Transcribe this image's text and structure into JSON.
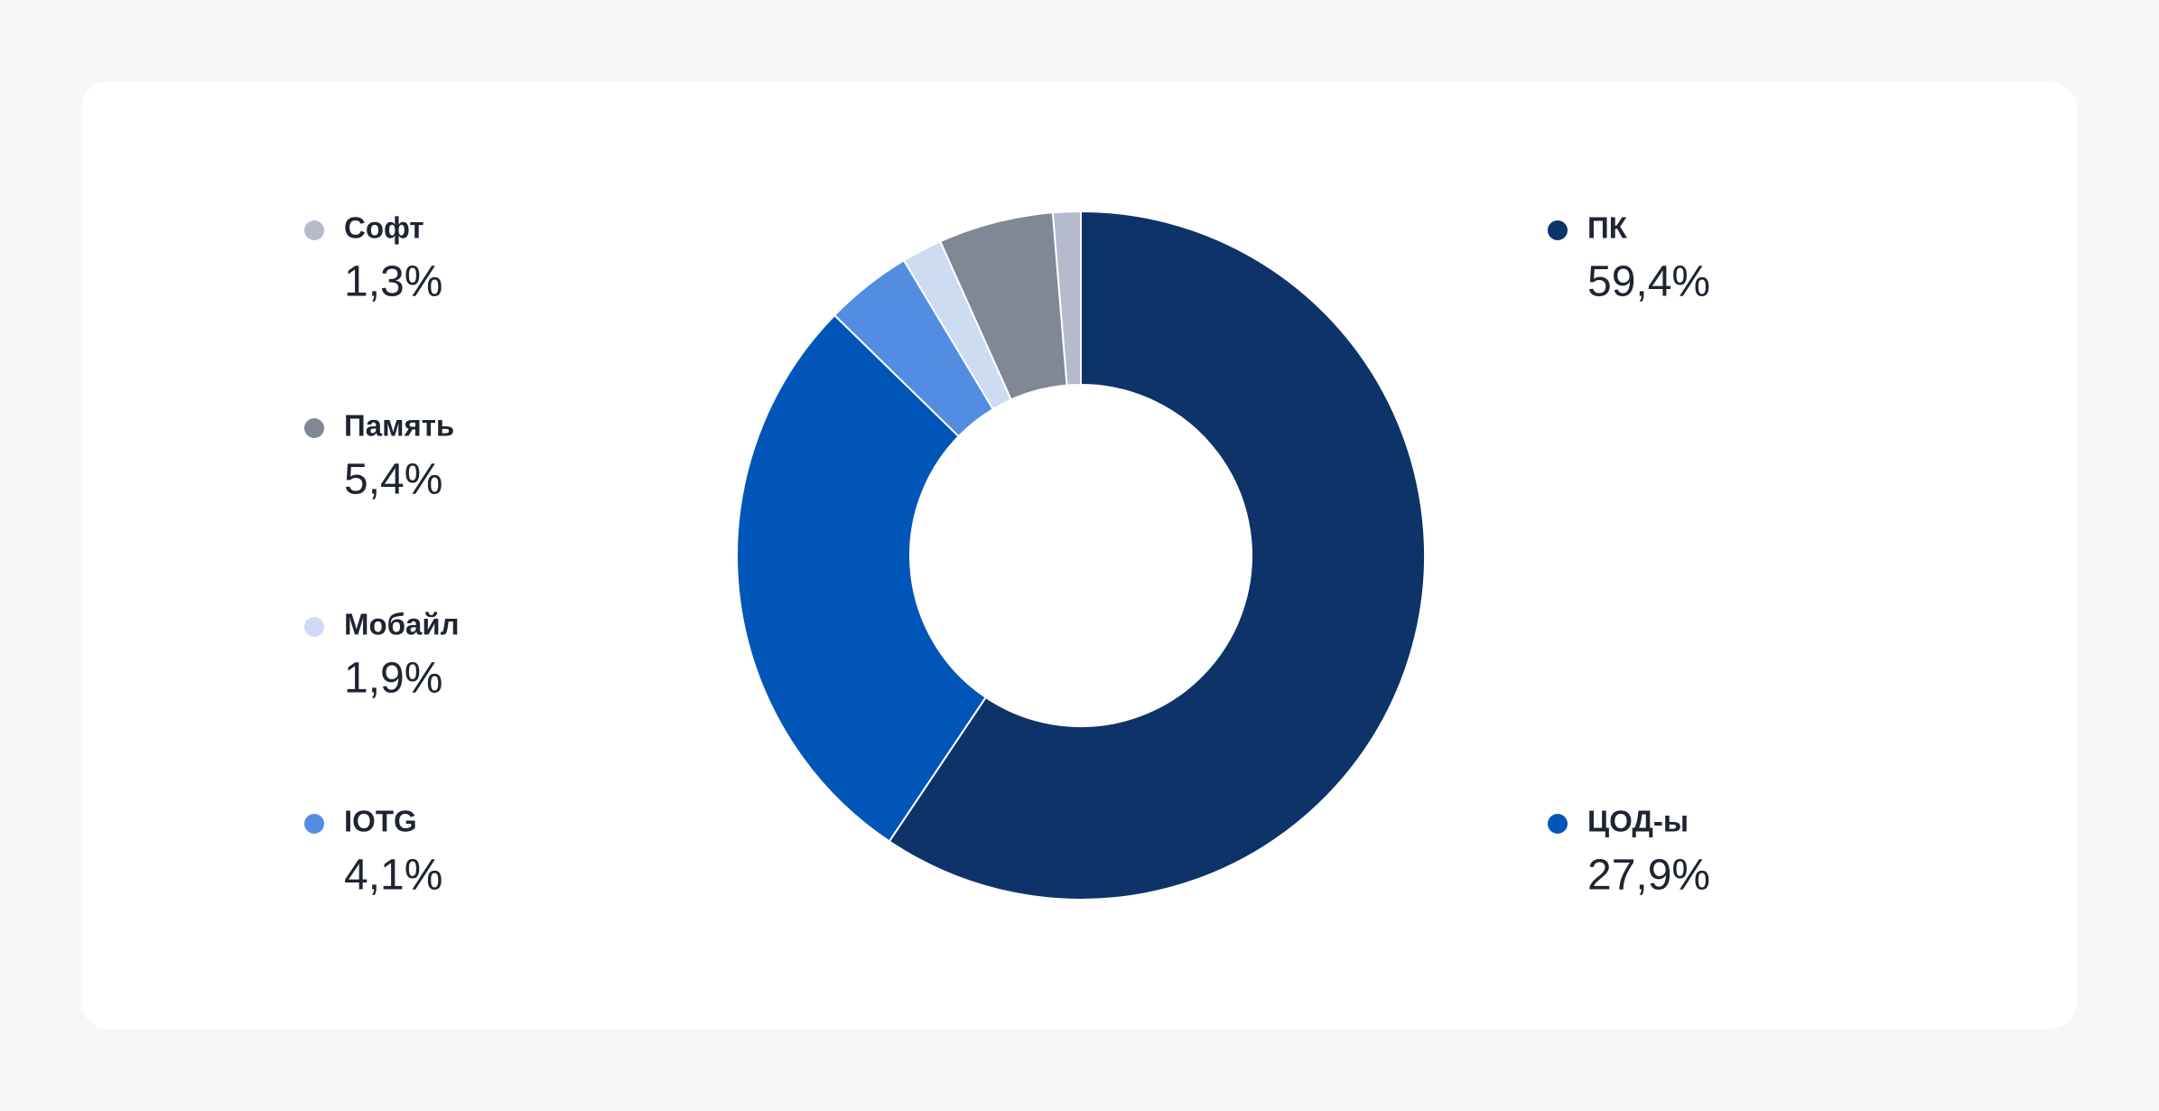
{
  "chart_data": {
    "type": "donut",
    "categories": [
      "ПК",
      "ЦОД-ы",
      "IOTG",
      "Мобайл",
      "Память",
      "Софт"
    ],
    "values": [
      59.4,
      27.9,
      4.1,
      1.9,
      5.4,
      1.3
    ],
    "value_labels": [
      "59,4%",
      "27,9%",
      "4,1%",
      "1,9%",
      "5,4%",
      "1,3%"
    ],
    "colors": [
      "#0e3369",
      "#0056b8",
      "#528de2",
      "#cddcf3",
      "#7f8894",
      "#b5bacc"
    ]
  }
}
